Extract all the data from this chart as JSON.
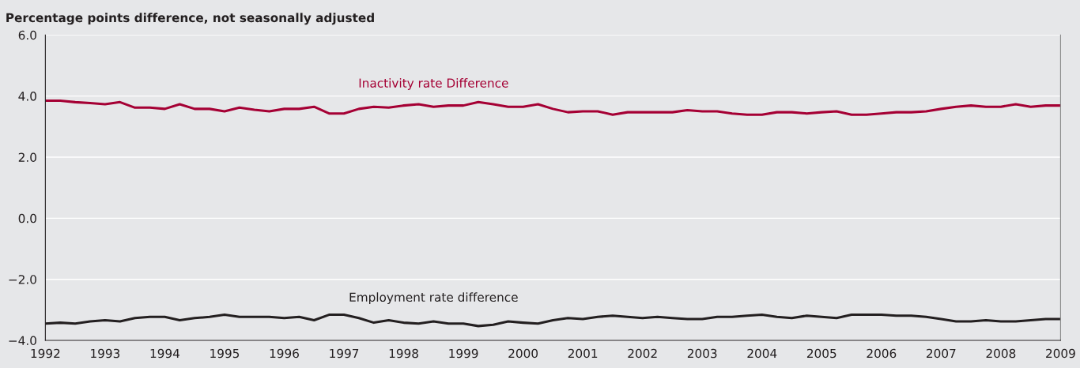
{
  "chart_data": {
    "type": "line",
    "title": "Percentage points difference, not seasonally adjusted",
    "x": [
      1992.0,
      1992.25,
      1992.5,
      1992.75,
      1993.0,
      1993.25,
      1993.5,
      1993.75,
      1994.0,
      1994.25,
      1994.5,
      1994.75,
      1995.0,
      1995.25,
      1995.5,
      1995.75,
      1996.0,
      1996.25,
      1996.5,
      1996.75,
      1997.0,
      1997.25,
      1997.5,
      1997.75,
      1998.0,
      1998.25,
      1998.5,
      1998.75,
      1999.0,
      1999.25,
      1999.5,
      1999.75,
      2000.0,
      2000.25,
      2000.5,
      2000.75,
      2001.0,
      2001.25,
      2001.5,
      2001.75,
      2002.0,
      2002.25,
      2002.5,
      2002.75,
      2003.0,
      2003.25,
      2003.5,
      2003.75,
      2004.0,
      2004.25,
      2004.5,
      2004.75,
      2005.0,
      2005.25,
      2005.5,
      2005.75,
      2006.0,
      2006.25,
      2006.5,
      2006.75,
      2007.0,
      2007.25,
      2007.5,
      2007.75,
      2008.0,
      2008.25,
      2008.5,
      2008.75,
      2009.0
    ],
    "series": [
      {
        "name": "Inactivity rate Difference",
        "color": "#a50034",
        "values": [
          3.85,
          3.85,
          3.8,
          3.77,
          3.73,
          3.8,
          3.62,
          3.62,
          3.58,
          3.73,
          3.58,
          3.58,
          3.5,
          3.62,
          3.55,
          3.5,
          3.58,
          3.58,
          3.65,
          3.43,
          3.43,
          3.58,
          3.65,
          3.62,
          3.69,
          3.73,
          3.65,
          3.69,
          3.69,
          3.8,
          3.73,
          3.65,
          3.65,
          3.73,
          3.58,
          3.47,
          3.5,
          3.5,
          3.39,
          3.47,
          3.47,
          3.47,
          3.47,
          3.54,
          3.5,
          3.5,
          3.43,
          3.39,
          3.39,
          3.47,
          3.47,
          3.43,
          3.47,
          3.5,
          3.39,
          3.39,
          3.43,
          3.47,
          3.47,
          3.5,
          3.58,
          3.65,
          3.69,
          3.65,
          3.65,
          3.73,
          3.65,
          3.69,
          3.69
        ]
      },
      {
        "name": "Employment rate difference",
        "color": "#231f20",
        "values": [
          -3.45,
          -3.42,
          -3.45,
          -3.38,
          -3.34,
          -3.38,
          -3.27,
          -3.23,
          -3.23,
          -3.34,
          -3.27,
          -3.23,
          -3.16,
          -3.23,
          -3.23,
          -3.23,
          -3.27,
          -3.23,
          -3.34,
          -3.16,
          -3.16,
          -3.27,
          -3.42,
          -3.34,
          -3.42,
          -3.45,
          -3.38,
          -3.45,
          -3.45,
          -3.53,
          -3.49,
          -3.38,
          -3.42,
          -3.45,
          -3.34,
          -3.27,
          -3.3,
          -3.23,
          -3.19,
          -3.23,
          -3.27,
          -3.23,
          -3.27,
          -3.3,
          -3.3,
          -3.23,
          -3.23,
          -3.19,
          -3.16,
          -3.23,
          -3.27,
          -3.19,
          -3.23,
          -3.27,
          -3.16,
          -3.16,
          -3.16,
          -3.19,
          -3.19,
          -3.23,
          -3.3,
          -3.38,
          -3.38,
          -3.34,
          -3.38,
          -3.38,
          -3.34,
          -3.3,
          -3.3
        ]
      }
    ],
    "xlim": [
      1992,
      2009
    ],
    "xticks": [
      1992,
      1993,
      1994,
      1995,
      1996,
      1997,
      1998,
      1999,
      2000,
      2001,
      2002,
      2003,
      2004,
      2005,
      2006,
      2007,
      2008,
      2009
    ],
    "ylim": [
      -4,
      6
    ],
    "yticks": [
      {
        "value": -4,
        "label": "−4.0"
      },
      {
        "value": -2,
        "label": "−2.0"
      },
      {
        "value": 0,
        "label": "0.0"
      },
      {
        "value": 2,
        "label": "2.0"
      },
      {
        "value": 4,
        "label": "4.0"
      },
      {
        "value": 6,
        "label": "6.0"
      }
    ],
    "grid": "y",
    "legend": false,
    "marker": "none",
    "line_style": "solid"
  }
}
